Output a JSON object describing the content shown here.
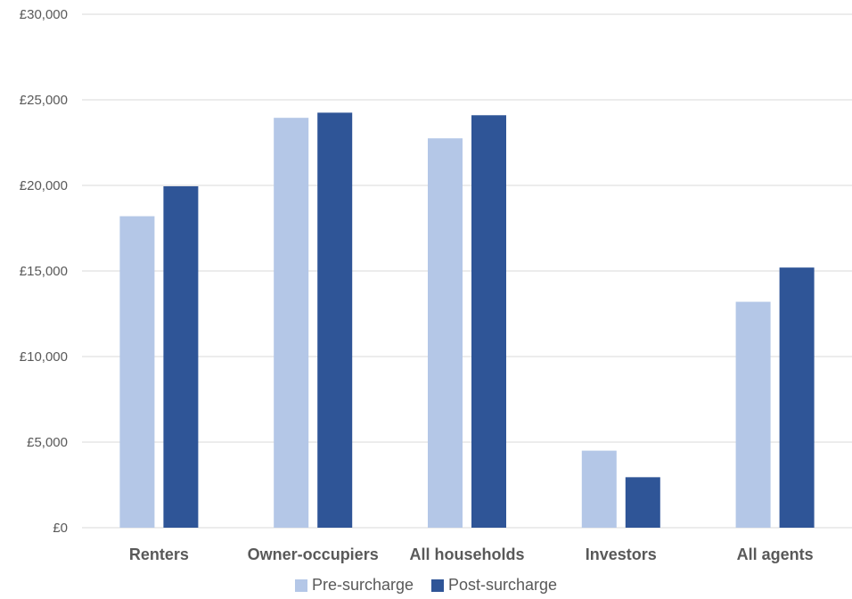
{
  "chart_data": {
    "type": "bar",
    "title": "",
    "xlabel": "",
    "ylabel": "",
    "categories": [
      "Renters",
      "Owner-occupiers",
      "All households",
      "Investors",
      "All agents"
    ],
    "series": [
      {
        "name": "Pre-surcharge",
        "color": "#B4C7E7",
        "values": [
          18200,
          23950,
          22750,
          4500,
          13200
        ]
      },
      {
        "name": "Post-surcharge",
        "color": "#2F5597",
        "values": [
          19950,
          24250,
          24100,
          2950,
          15200
        ]
      }
    ],
    "ylim": [
      0,
      30000
    ],
    "yticks": [
      0,
      5000,
      10000,
      15000,
      20000,
      25000,
      30000
    ],
    "ytick_labels": [
      "£0",
      "£5,000",
      "£10,000",
      "£15,000",
      "£20,000",
      "£25,000",
      "£30,000"
    ],
    "grid": true,
    "legend_position": "bottom",
    "gridline_color": "#D9D9D9"
  }
}
